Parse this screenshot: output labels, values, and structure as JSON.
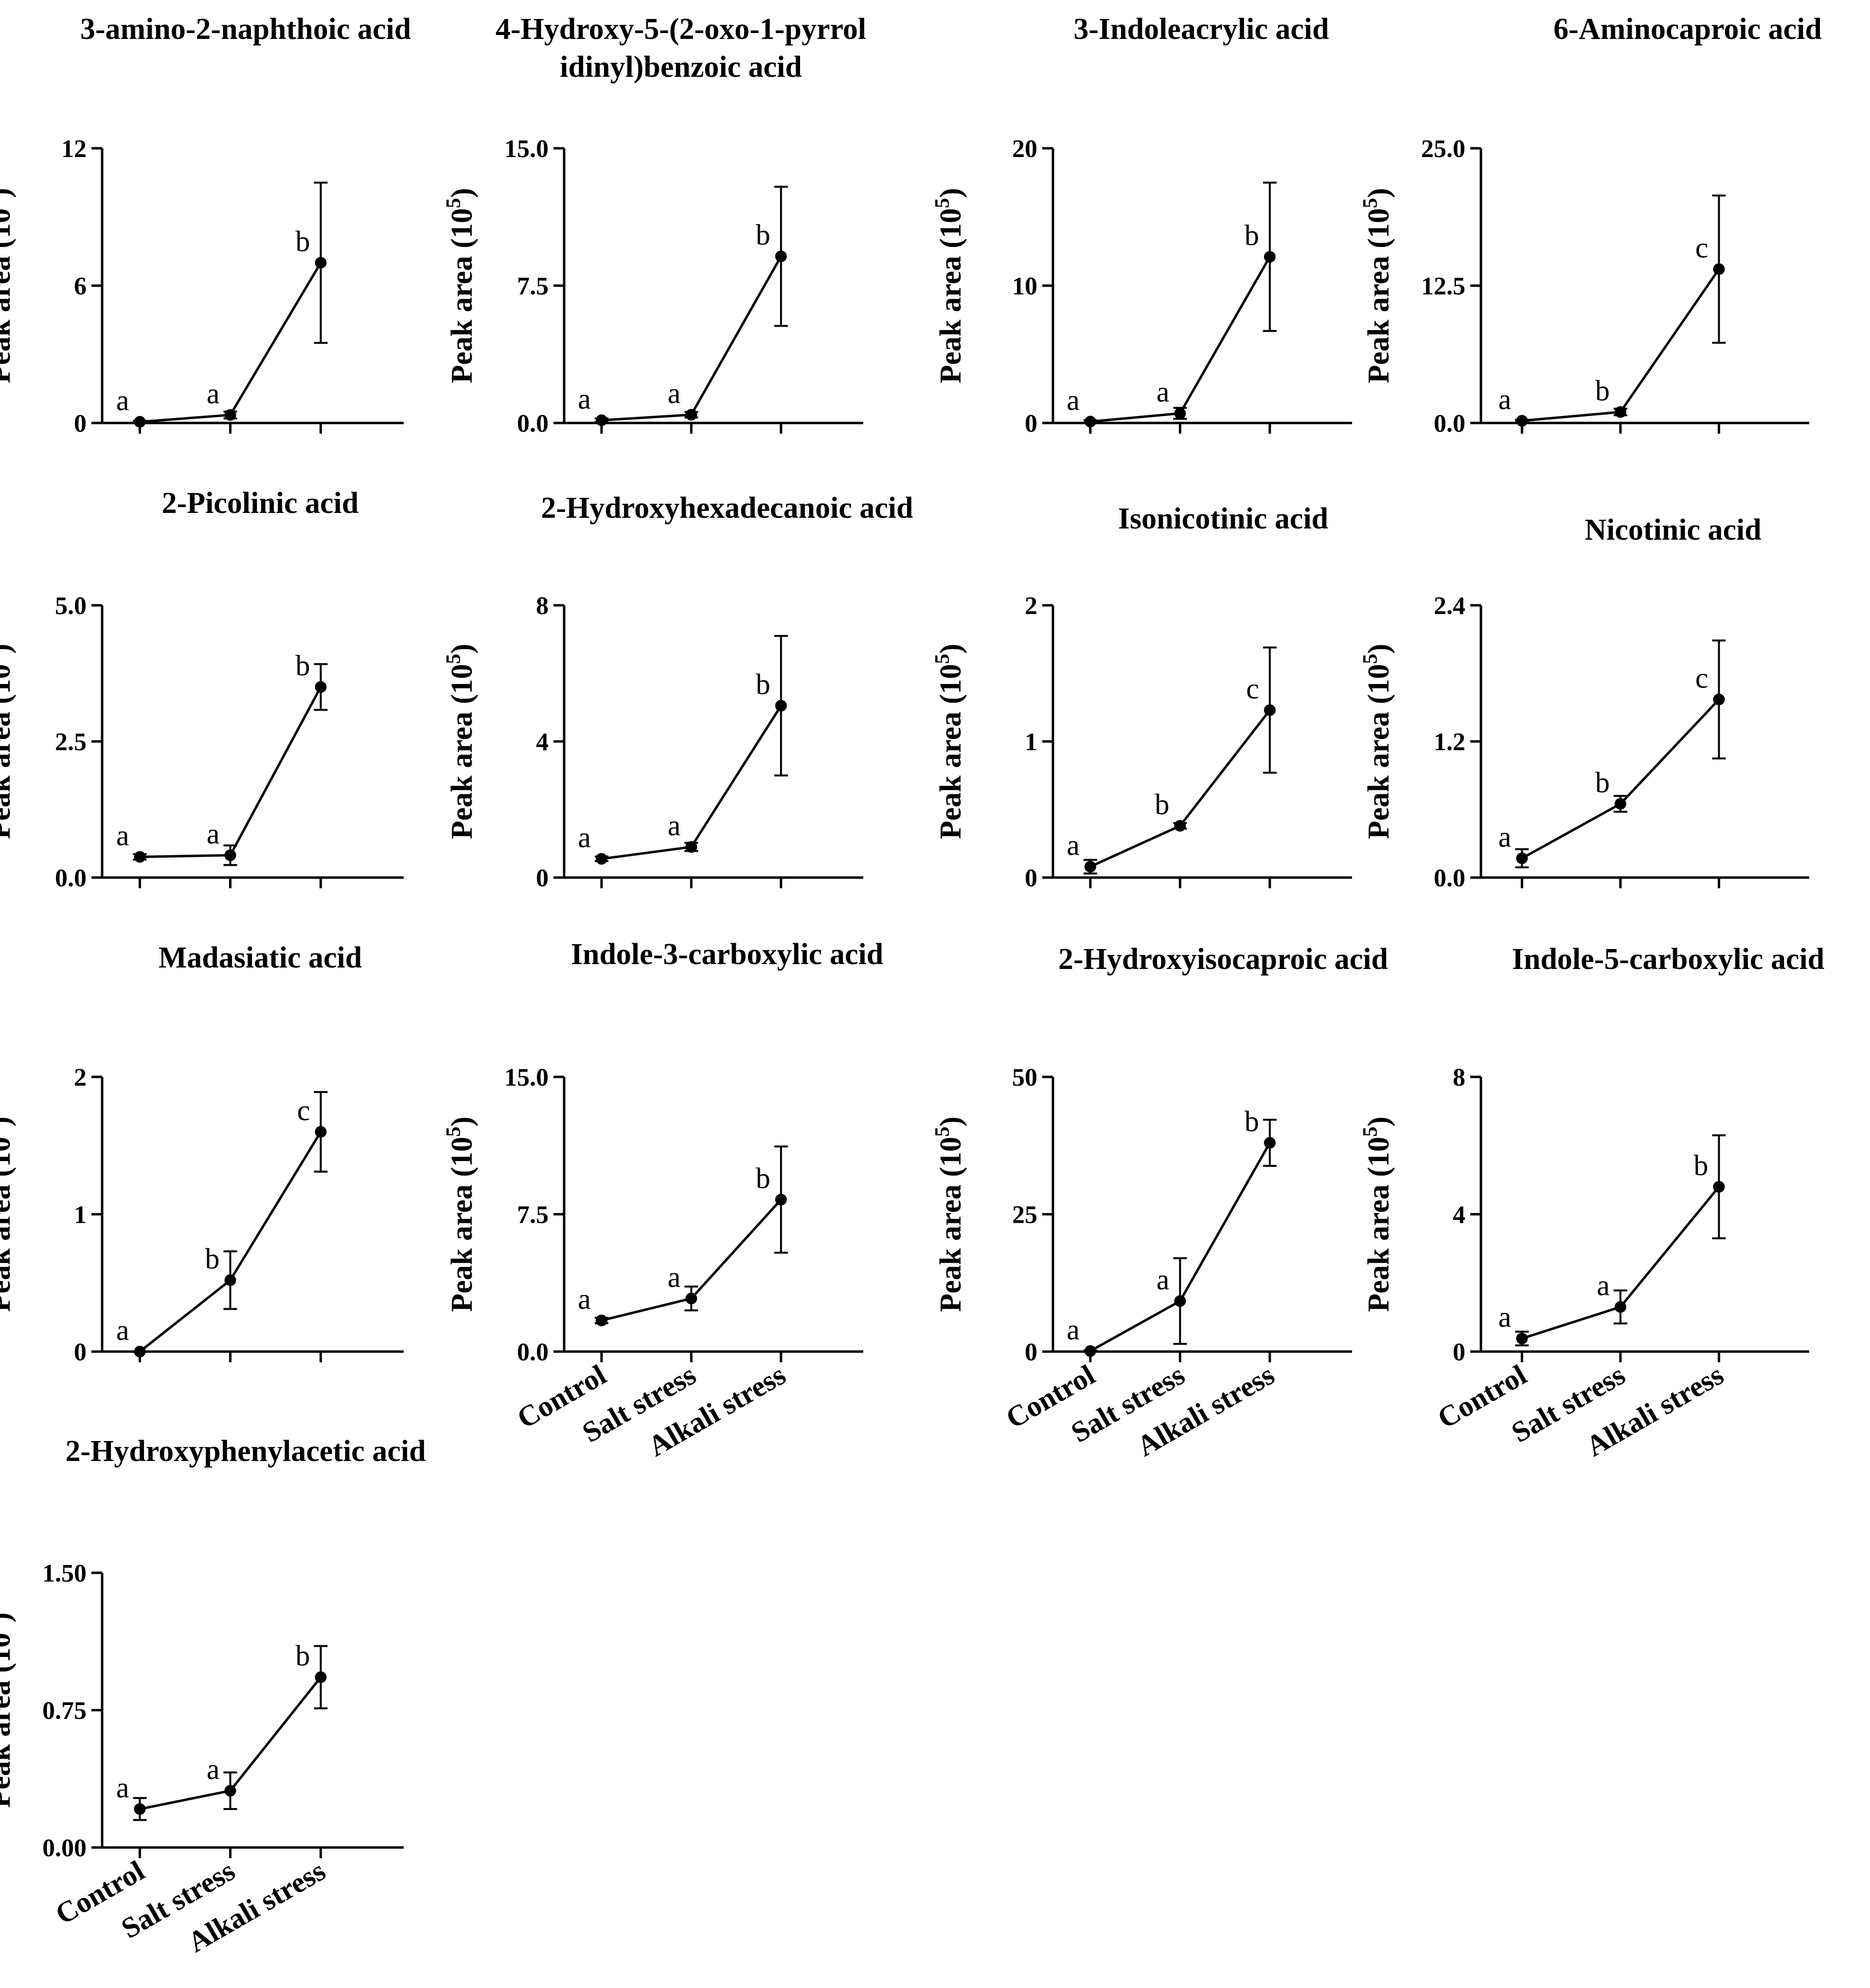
{
  "figure": {
    "ylabel": "Peak area (10",
    "ylabel_sup": "5",
    "ylabel_close": ")",
    "categories": [
      "Control",
      "Salt stress",
      "Alkali stress"
    ]
  },
  "chart_data": [
    {
      "type": "line",
      "title": [
        "3-amino-2-naphthoic acid"
      ],
      "yticks": [
        "0",
        "6",
        "12"
      ],
      "ylim": [
        0,
        12
      ],
      "values": [
        0.05,
        0.35,
        7.0
      ],
      "errors": [
        0.05,
        0.15,
        3.5
      ],
      "letters": [
        "a",
        "a",
        "b"
      ],
      "show_categories": false
    },
    {
      "type": "line",
      "title": [
        "4-Hydroxy-5-(2-oxo-1-pyrrol",
        "idinyl)benzoic acid"
      ],
      "yticks": [
        "0.0",
        "7.5",
        "15.0"
      ],
      "ylim": [
        0,
        15
      ],
      "values": [
        0.15,
        0.45,
        9.1
      ],
      "errors": [
        0.1,
        0.15,
        3.8
      ],
      "letters": [
        "a",
        "a",
        "b"
      ],
      "show_categories": false
    },
    {
      "type": "line",
      "title": [
        "3-Indoleacrylic acid"
      ],
      "yticks": [
        "0",
        "10",
        "20"
      ],
      "ylim": [
        0,
        20
      ],
      "values": [
        0.1,
        0.7,
        12.1
      ],
      "errors": [
        0.1,
        0.4,
        5.4
      ],
      "letters": [
        "a",
        "a",
        "b"
      ],
      "show_categories": false
    },
    {
      "type": "line",
      "title": [
        "6-Aminocaproic acid"
      ],
      "yticks": [
        "0.0",
        "12.5",
        "25.0"
      ],
      "ylim": [
        0,
        25
      ],
      "values": [
        0.2,
        1.0,
        14.0
      ],
      "errors": [
        0.1,
        0.3,
        6.7
      ],
      "letters": [
        "a",
        "b",
        "c"
      ],
      "show_categories": false
    },
    {
      "type": "line",
      "title": [
        "2-Picolinic acid"
      ],
      "yticks": [
        "0.0",
        "2.5",
        "5.0"
      ],
      "ylim": [
        0,
        5
      ],
      "values": [
        0.38,
        0.41,
        3.5
      ],
      "errors": [
        0.05,
        0.18,
        0.42
      ],
      "letters": [
        "a",
        "a",
        "b"
      ],
      "show_categories": false
    },
    {
      "type": "line",
      "title": [
        "2-Hydroxyhexadecanoic acid"
      ],
      "yticks": [
        "0",
        "4",
        "8"
      ],
      "ylim": [
        0,
        8
      ],
      "values": [
        0.55,
        0.9,
        5.05
      ],
      "errors": [
        0.07,
        0.12,
        2.05
      ],
      "letters": [
        "a",
        "a",
        "b"
      ],
      "show_categories": false
    },
    {
      "type": "line",
      "title": [
        "Isonicotinic acid"
      ],
      "yticks": [
        "0",
        "1",
        "2"
      ],
      "ylim": [
        0,
        2
      ],
      "values": [
        0.08,
        0.38,
        1.23
      ],
      "errors": [
        0.05,
        0.02,
        0.46
      ],
      "letters": [
        "a",
        "b",
        "c"
      ],
      "show_categories": false
    },
    {
      "type": "line",
      "title": [
        "Nicotinic acid"
      ],
      "yticks": [
        "0.0",
        "1.2",
        "2.4"
      ],
      "ylim": [
        0,
        2.4
      ],
      "values": [
        0.17,
        0.65,
        1.57
      ],
      "errors": [
        0.08,
        0.07,
        0.52
      ],
      "letters": [
        "a",
        "b",
        "c"
      ],
      "show_categories": false
    },
    {
      "type": "line",
      "title": [
        "Madasiatic acid"
      ],
      "yticks": [
        "0",
        "1",
        "2"
      ],
      "ylim": [
        0,
        2
      ],
      "values": [
        0.0,
        0.52,
        1.6
      ],
      "errors": [
        0.0,
        0.21,
        0.29
      ],
      "letters": [
        "a",
        "b",
        "c"
      ],
      "show_categories": false
    },
    {
      "type": "line",
      "title": [
        "Indole-3-carboxylic acid"
      ],
      "yticks": [
        "0.0",
        "7.5",
        "15.0"
      ],
      "ylim": [
        0,
        15
      ],
      "values": [
        1.7,
        2.9,
        8.3
      ],
      "errors": [
        0.15,
        0.65,
        2.9
      ],
      "letters": [
        "a",
        "a",
        "b"
      ],
      "show_categories": true
    },
    {
      "type": "line",
      "title": [
        "2-Hydroxyisocaproic acid"
      ],
      "yticks": [
        "0",
        "25",
        "50"
      ],
      "ylim": [
        0,
        50
      ],
      "values": [
        0.1,
        9.2,
        38.0
      ],
      "errors": [
        0.1,
        7.8,
        4.2
      ],
      "letters": [
        "a",
        "a",
        "b"
      ],
      "show_categories": true
    },
    {
      "type": "line",
      "title": [
        "Indole-5-carboxylic acid"
      ],
      "yticks": [
        "0",
        "4",
        "8"
      ],
      "ylim": [
        0,
        8
      ],
      "values": [
        0.38,
        1.3,
        4.8
      ],
      "errors": [
        0.2,
        0.48,
        1.5
      ],
      "letters": [
        "a",
        "a",
        "b"
      ],
      "show_categories": true
    },
    {
      "type": "line",
      "title": [
        "2-Hydroxyphenylacetic acid"
      ],
      "yticks": [
        "0.00",
        "0.75",
        "1.50"
      ],
      "ylim": [
        0,
        1.5
      ],
      "values": [
        0.21,
        0.31,
        0.93
      ],
      "errors": [
        0.06,
        0.1,
        0.17
      ],
      "letters": [
        "a",
        "a",
        "b"
      ],
      "show_categories": true
    }
  ]
}
